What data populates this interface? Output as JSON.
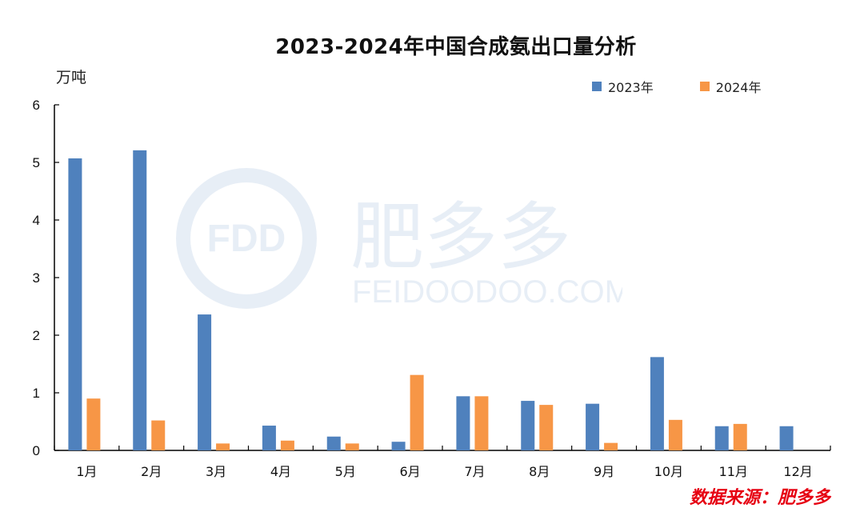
{
  "chart_data": {
    "type": "bar",
    "title": "2023-2024年中国合成氨出口量分析",
    "unit_label": "万吨",
    "categories": [
      "1月",
      "2月",
      "3月",
      "4月",
      "5月",
      "6月",
      "7月",
      "8月",
      "9月",
      "10月",
      "11月",
      "12月"
    ],
    "series": [
      {
        "name": "2023年",
        "color": "#4F81BD",
        "values": [
          5.07,
          5.21,
          2.36,
          0.43,
          0.24,
          0.15,
          0.94,
          0.86,
          0.81,
          1.62,
          0.42,
          0.42
        ]
      },
      {
        "name": "2024年",
        "color": "#F79646",
        "values": [
          0.9,
          0.52,
          0.12,
          0.17,
          0.12,
          1.31,
          0.94,
          0.79,
          0.13,
          0.53,
          0.46,
          null
        ]
      }
    ],
    "ylim": [
      0,
      6
    ],
    "yticks": [
      0,
      1,
      2,
      3,
      4,
      5,
      6
    ],
    "grid": false,
    "legend_position": "top-right"
  },
  "source_label": "数据来源：肥多多",
  "watermark": {
    "logo_text": "FDD",
    "brand_text": "肥多多",
    "url_text": "FEIDOODOO.COM"
  }
}
